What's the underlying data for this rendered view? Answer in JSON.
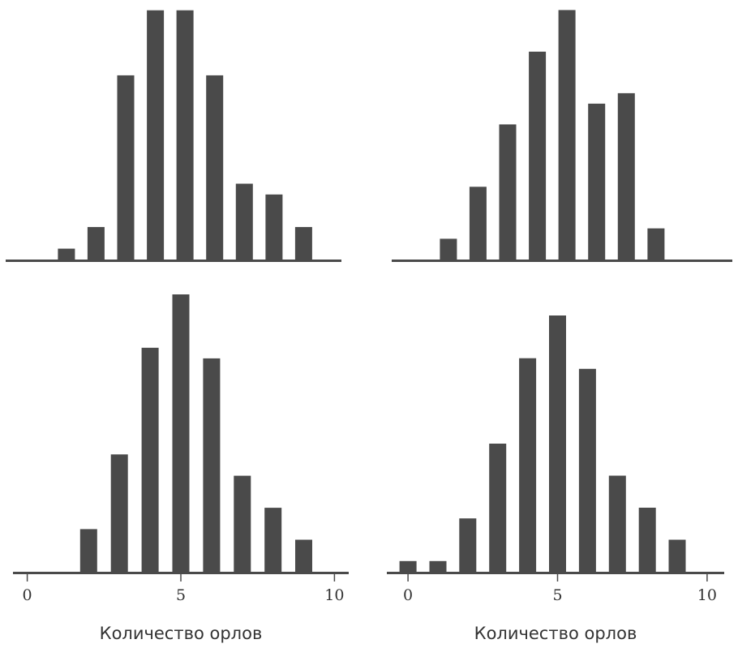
{
  "colors": {
    "bar": "#4a4a4a",
    "axis": "#4a4a4a",
    "text": "#333333",
    "background": "#ffffff"
  },
  "chart_data": [
    {
      "type": "bar",
      "panel": "top-left",
      "x": [
        1,
        2,
        3,
        4,
        5,
        6,
        7,
        8,
        9
      ],
      "values": [
        1,
        3,
        17,
        23,
        23,
        17,
        7,
        6,
        3
      ],
      "xlim": [
        -0.5,
        10
      ],
      "ylim": [
        0,
        23.5
      ],
      "xticks": [],
      "xlabel": ""
    },
    {
      "type": "bar",
      "panel": "top-right",
      "x": [
        1,
        2,
        3,
        4,
        5,
        6,
        7,
        8
      ],
      "values": [
        2,
        7,
        13,
        20,
        24,
        15,
        16,
        3
      ],
      "xlim": [
        -0.5,
        10
      ],
      "ylim": [
        0,
        24.5
      ],
      "xticks": [],
      "xlabel": ""
    },
    {
      "type": "bar",
      "panel": "bottom-left",
      "x": [
        2,
        3,
        4,
        5,
        6,
        7,
        8,
        9
      ],
      "values": [
        4,
        11,
        21,
        26,
        20,
        9,
        6,
        3
      ],
      "xlim": [
        -0.2,
        10.2
      ],
      "ylim": [
        0,
        26
      ],
      "xticks": [
        0,
        5,
        10
      ],
      "xtick_labels": [
        "0",
        "5",
        "10"
      ],
      "xlabel": "Количество орлов"
    },
    {
      "type": "bar",
      "panel": "bottom-right",
      "x": [
        0,
        1,
        2,
        3,
        4,
        5,
        6,
        7,
        8,
        9
      ],
      "values": [
        1,
        1,
        5,
        12,
        20,
        24,
        19,
        9,
        6,
        3
      ],
      "xlim": [
        -0.3,
        10.3
      ],
      "ylim": [
        0,
        24
      ],
      "xticks": [
        0,
        5,
        10
      ],
      "xtick_labels": [
        "0",
        "5",
        "10"
      ],
      "xlabel": "Количество орлов"
    }
  ]
}
